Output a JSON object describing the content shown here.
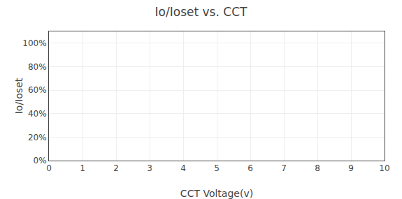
{
  "chart_data": {
    "type": "line",
    "title": "Io/Ioset vs. CCT",
    "xlabel": "CCT Voltage(v)",
    "ylabel": "Io/Ioset",
    "xlim": [
      0,
      10
    ],
    "ylim": [
      0,
      1.1
    ],
    "xticks": [
      0,
      1,
      2,
      3,
      4,
      5,
      6,
      7,
      8,
      9,
      10
    ],
    "yticks": [
      {
        "value": 0.0,
        "label": "0%"
      },
      {
        "value": 0.2,
        "label": "20%"
      },
      {
        "value": 0.4,
        "label": "40%"
      },
      {
        "value": 0.6,
        "label": "60%"
      },
      {
        "value": 0.8,
        "label": "80%"
      },
      {
        "value": 1.0,
        "label": "100%"
      }
    ],
    "grid": true
  }
}
